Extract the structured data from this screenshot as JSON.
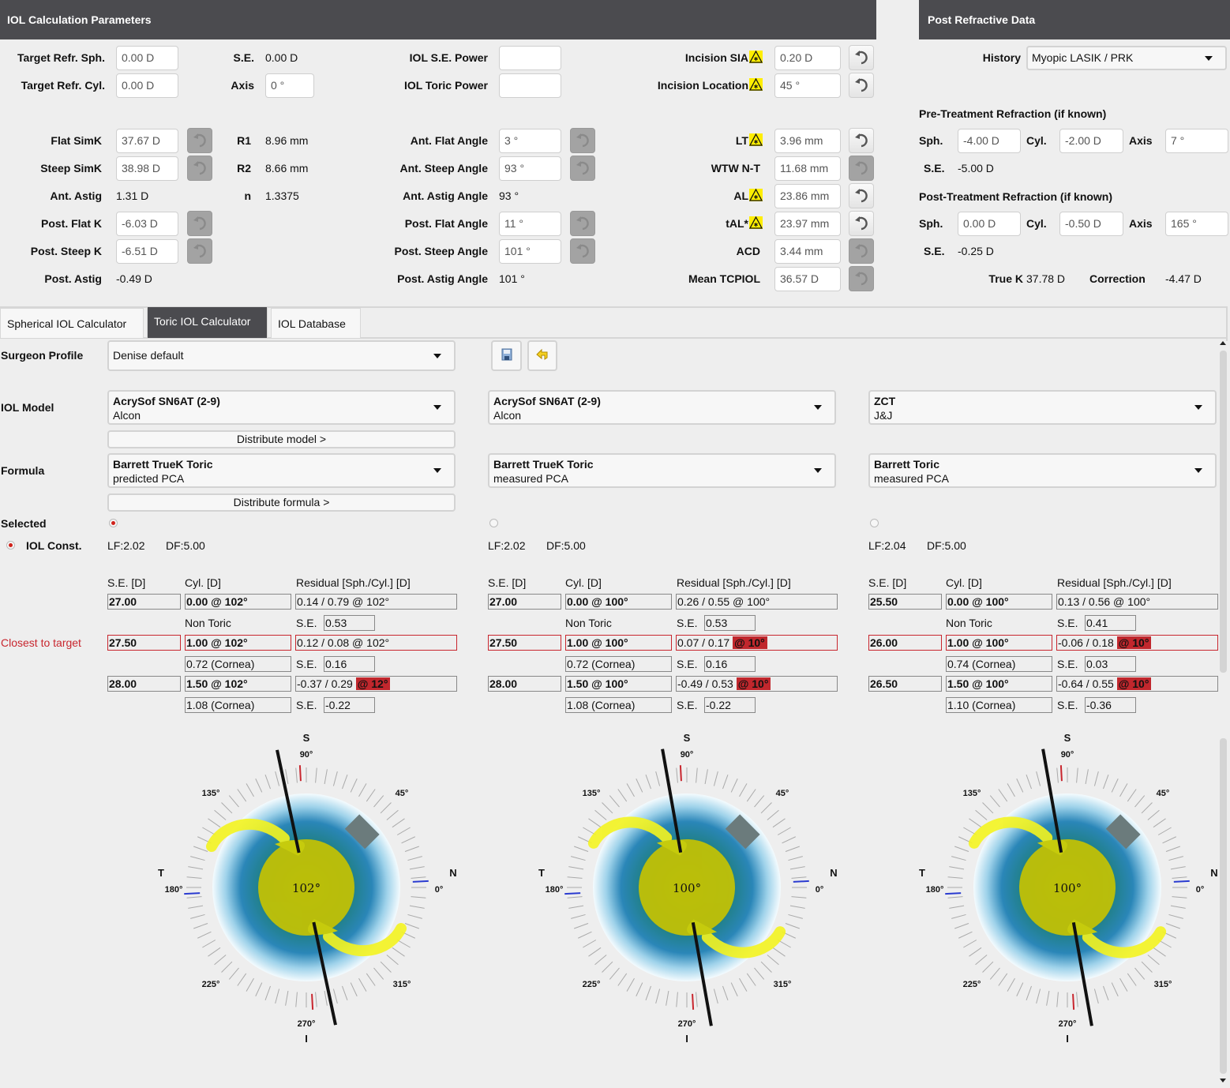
{
  "left_panel": {
    "title": "IOL Calculation Parameters",
    "target_refr_sph": {
      "label": "Target Refr. Sph.",
      "value": "0.00 D"
    },
    "target_refr_cyl": {
      "label": "Target Refr. Cyl.",
      "value": "0.00 D"
    },
    "se": {
      "label": "S.E.",
      "value": "0.00 D"
    },
    "axis": {
      "label": "Axis",
      "value": "0 °"
    },
    "iol_se_power": {
      "label": "IOL S.E. Power",
      "value": ""
    },
    "iol_toric_power": {
      "label": "IOL Toric Power",
      "value": ""
    },
    "incision_sia": {
      "label": "Incision SIA",
      "value": "0.20 D"
    },
    "incision_location": {
      "label": "Incision Location",
      "value": "45 °"
    },
    "flat_simk": {
      "label": "Flat SimK",
      "value": "37.67 D"
    },
    "steep_simk": {
      "label": "Steep SimK",
      "value": "38.98 D"
    },
    "ant_astig": {
      "label": "Ant. Astig",
      "value": "1.31 D"
    },
    "post_flat_k": {
      "label": "Post. Flat K",
      "value": "-6.03 D"
    },
    "post_steep_k": {
      "label": "Post. Steep K",
      "value": "-6.51 D"
    },
    "post_astig": {
      "label": "Post. Astig",
      "value": "-0.49 D"
    },
    "r1": {
      "label": "R1",
      "value": "8.96 mm"
    },
    "r2": {
      "label": "R2",
      "value": "8.66 mm"
    },
    "n": {
      "label": "n",
      "value": "1.3375"
    },
    "ant_flat_angle": {
      "label": "Ant. Flat Angle",
      "value": "3 °"
    },
    "ant_steep_angle": {
      "label": "Ant. Steep Angle",
      "value": "93 °"
    },
    "ant_astig_angle": {
      "label": "Ant. Astig Angle",
      "value": "93 °"
    },
    "post_flat_angle": {
      "label": "Post. Flat Angle",
      "value": "11 °"
    },
    "post_steep_angle": {
      "label": "Post. Steep Angle",
      "value": "101 °"
    },
    "post_astig_angle": {
      "label": "Post. Astig Angle",
      "value": "101 °"
    },
    "lt": {
      "label": "LT",
      "value": "3.96 mm"
    },
    "wtw": {
      "label": "WTW N-T",
      "value": "11.68 mm"
    },
    "al": {
      "label": "AL",
      "value": "23.86 mm"
    },
    "tal": {
      "label": "tAL*",
      "value": "23.97 mm"
    },
    "acd": {
      "label": "ACD",
      "value": "3.44 mm"
    },
    "mean_tcpiol": {
      "label": "Mean TCPIOL",
      "value": "36.57 D"
    }
  },
  "right_panel": {
    "title": "Post Refractive Data",
    "history": {
      "label": "History",
      "value": "Myopic LASIK / PRK"
    },
    "pre_title": "Pre-Treatment Refraction (if known)",
    "pre": {
      "sph_label": "Sph.",
      "sph": "-4.00 D",
      "cyl_label": "Cyl.",
      "cyl": "-2.00 D",
      "axis_label": "Axis",
      "axis": "7 °",
      "se_label": "S.E.",
      "se": "-5.00 D"
    },
    "post_title": "Post-Treatment Refraction (if known)",
    "post": {
      "sph_label": "Sph.",
      "sph": "0.00 D",
      "cyl_label": "Cyl.",
      "cyl": "-0.50 D",
      "axis_label": "Axis",
      "axis": "165 °",
      "se_label": "S.E.",
      "se": "-0.25 D"
    },
    "true_k": {
      "label": "True K",
      "value": "37.78 D"
    },
    "correction": {
      "label": "Correction",
      "value": "-4.47 D"
    }
  },
  "tabs": [
    {
      "label": "Spherical IOL Calculator",
      "active": false
    },
    {
      "label": "Toric IOL Calculator",
      "active": true
    },
    {
      "label": "IOL Database",
      "active": false
    }
  ],
  "calculator": {
    "surgeon_profile_label": "Surgeon Profile",
    "surgeon_profile": "Denise default",
    "iol_model_label": "IOL Model",
    "formula_label": "Formula",
    "distribute_model": "Distribute model >",
    "distribute_formula": "Distribute formula >",
    "selected_label": "Selected",
    "iol_const_label": "IOL Const.",
    "closest_label": "Closest to target",
    "headers": {
      "se": "S.E. [D]",
      "cyl": "Cyl. [D]",
      "residual": "Residual [Sph./Cyl.] [D]",
      "se_short": "S.E.",
      "non_toric": "Non Toric"
    },
    "columns": [
      {
        "model": "AcrySof SN6AT (2-9)",
        "manufacturer": "Alcon",
        "formula": "Barrett TrueK Toric",
        "formula_sub": "predicted PCA",
        "selected": true,
        "lf": "LF:2.02",
        "df": "DF:5.00",
        "axis": 102,
        "axis_label": "102°",
        "rows": [
          {
            "se": "27.00",
            "cyl": "0.00 @ 102°",
            "residual": "0.14 / 0.79 @ 102°",
            "flag": "",
            "note": "Non Toric",
            "res_se": "0.53",
            "closest": false
          },
          {
            "se": "27.50",
            "cyl": "1.00 @ 102°",
            "residual": "0.12 / 0.08 @ 102°",
            "flag": "",
            "note": "0.72 (Cornea)",
            "res_se": "0.16",
            "closest": true
          },
          {
            "se": "28.00",
            "cyl": "1.50 @ 102°",
            "residual": "-0.37 / 0.29",
            "flag": "@ 12°",
            "note": "1.08 (Cornea)",
            "res_se": "-0.22",
            "closest": false
          }
        ]
      },
      {
        "model": "AcrySof SN6AT (2-9)",
        "manufacturer": "Alcon",
        "formula": "Barrett TrueK Toric",
        "formula_sub": "measured PCA",
        "selected": false,
        "lf": "LF:2.02",
        "df": "DF:5.00",
        "axis": 100,
        "axis_label": "100°",
        "rows": [
          {
            "se": "27.00",
            "cyl": "0.00 @ 100°",
            "residual": "0.26 / 0.55 @ 100°",
            "flag": "",
            "note": "Non Toric",
            "res_se": "0.53",
            "closest": false
          },
          {
            "se": "27.50",
            "cyl": "1.00 @ 100°",
            "residual": "0.07 / 0.17",
            "flag": "@ 10°",
            "note": "0.72 (Cornea)",
            "res_se": "0.16",
            "closest": true
          },
          {
            "se": "28.00",
            "cyl": "1.50 @ 100°",
            "residual": "-0.49 / 0.53",
            "flag": "@ 10°",
            "note": "1.08 (Cornea)",
            "res_se": "-0.22",
            "closest": false
          }
        ]
      },
      {
        "model": "ZCT",
        "manufacturer": "J&J",
        "formula": "Barrett Toric",
        "formula_sub": "measured PCA",
        "selected": false,
        "lf": "LF:2.04",
        "df": "DF:5.00",
        "axis": 100,
        "axis_label": "100°",
        "rows": [
          {
            "se": "25.50",
            "cyl": "0.00 @ 100°",
            "residual": "0.13 / 0.56 @ 100°",
            "flag": "",
            "note": "Non Toric",
            "res_se": "0.41",
            "closest": false
          },
          {
            "se": "26.00",
            "cyl": "1.00 @ 100°",
            "residual": "-0.06 / 0.18",
            "flag": "@ 10°",
            "note": "0.74 (Cornea)",
            "res_se": "0.03",
            "closest": true
          },
          {
            "se": "26.50",
            "cyl": "1.50 @ 100°",
            "residual": "-0.64 / 0.55",
            "flag": "@ 10°",
            "note": "1.10 (Cornea)",
            "res_se": "-0.36",
            "closest": false
          }
        ]
      }
    ]
  },
  "eye_diagram": {
    "top_letter": "S",
    "bottom_letter": "I",
    "left_letter": "T",
    "right_letter": "N",
    "degree_labels": [
      "0°",
      "45°",
      "90°",
      "135°",
      "180°",
      "225°",
      "270°",
      "315°"
    ],
    "incision_location_deg": 45,
    "steep_marker_deg": 93,
    "flat_marker_deg": 3
  },
  "colors": {
    "header": "#4b4b4f",
    "accent_red": "#c1272d",
    "warning_yellow": "#ffee00",
    "lens_yellow": "#f2f200"
  }
}
